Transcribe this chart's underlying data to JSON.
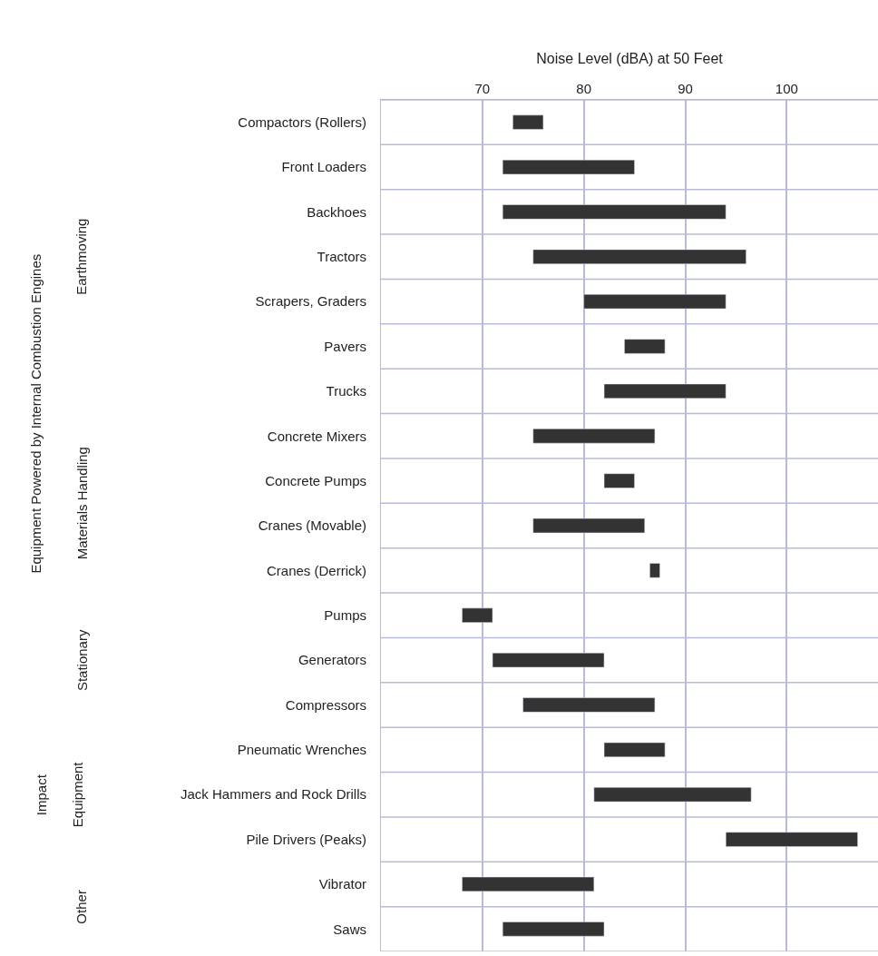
{
  "chart_data": {
    "type": "bar",
    "orientation": "horizontal",
    "xlabel": "Noise Level (dBA) at 50 Feet",
    "categories": [
      "Compactors (Rollers)",
      "Front Loaders",
      "Backhoes",
      "Tractors",
      "Scrapers, Graders",
      "Pavers",
      "Trucks",
      "Concrete Mixers",
      "Concrete Pumps",
      "Cranes (Movable)",
      "Cranes (Derrick)",
      "Pumps",
      "Generators",
      "Compressors",
      "Pneumatic Wrenches",
      "Jack Hammers and Rock Drills",
      "Pile Drivers (Peaks)",
      "Vibrator",
      "Saws"
    ],
    "base": [
      73,
      72,
      72,
      75,
      80,
      84,
      82,
      75,
      82,
      75,
      86.5,
      68,
      71,
      74,
      82,
      81,
      94,
      68,
      72
    ],
    "values": [
      3,
      13,
      22,
      21,
      14,
      4,
      12,
      12,
      3,
      11,
      1,
      3,
      11,
      13,
      6,
      15.5,
      13,
      13,
      10
    ],
    "color": "#333333",
    "xlim": [
      60,
      109
    ],
    "xticks": [
      70,
      80,
      90,
      100
    ],
    "grid": true,
    "annotations": [
      "Equipment Powered by Internal Combustion Engines",
      "Earthmoving",
      "Materials Handling",
      "Stationary",
      "Impact",
      "Equipment",
      "Other"
    ]
  }
}
